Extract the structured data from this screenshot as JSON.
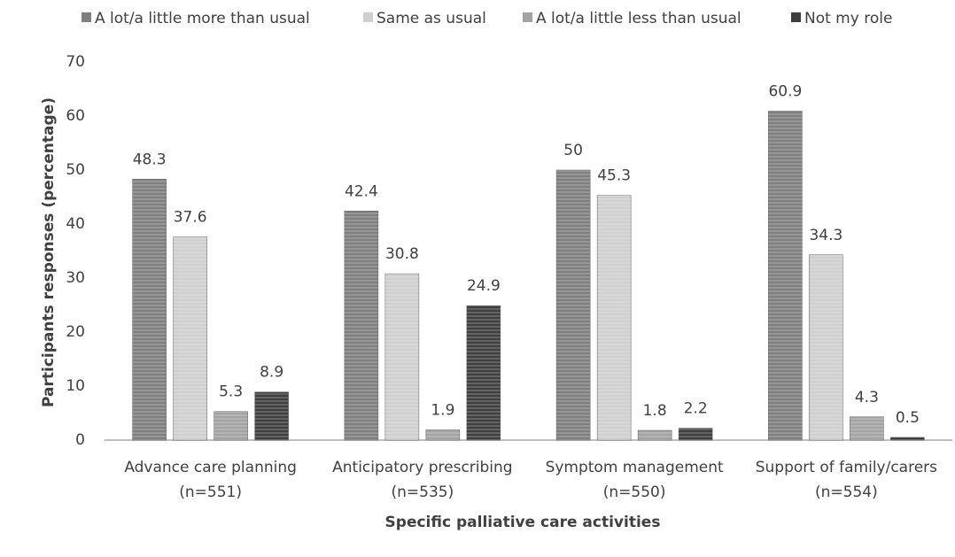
{
  "chart_data": {
    "type": "bar",
    "x_label": "Specific palliative care activities",
    "y_label": "Participants responses (percentage)",
    "categories": [
      [
        "Advance care planning",
        "(n=551)"
      ],
      [
        "Anticipatory prescribing",
        "(n=535)"
      ],
      [
        "Symptom management",
        "(n=550)"
      ],
      [
        "Support of family/carers",
        "(n=554)"
      ]
    ],
    "series": [
      {
        "name": "A lot/a little more than usual",
        "color": "#7f7f7f",
        "values": [
          48.3,
          42.4,
          50,
          60.9
        ]
      },
      {
        "name": "Same as usual",
        "color": "#cfcfcf",
        "values": [
          37.6,
          30.8,
          45.3,
          34.3
        ]
      },
      {
        "name": "A lot/a little less than usual",
        "color": "#a3a3a3",
        "values": [
          5.3,
          1.9,
          1.8,
          4.3
        ]
      },
      {
        "name": "Not my role",
        "color": "#3f3f3f",
        "values": [
          8.9,
          24.9,
          2.2,
          0.5
        ]
      }
    ],
    "ylim": [
      0,
      70
    ],
    "yticks": [
      0,
      10,
      20,
      30,
      40,
      50,
      60,
      70
    ],
    "grid": false,
    "legend": "top"
  }
}
